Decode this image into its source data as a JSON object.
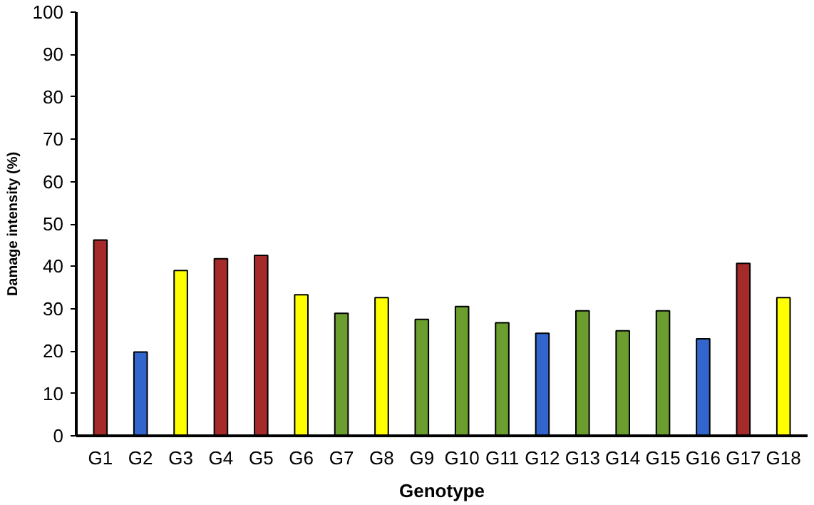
{
  "chart_data": {
    "type": "bar",
    "xlabel": "Genotype",
    "ylabel": "Damage intensity (%)",
    "categories": [
      "G1",
      "G2",
      "G3",
      "G4",
      "G5",
      "G6",
      "G7",
      "G8",
      "G9",
      "G10",
      "G11",
      "G12",
      "G13",
      "G14",
      "G15",
      "G16",
      "G17",
      "G18"
    ],
    "values": [
      46.2,
      19.8,
      39,
      41.8,
      42.6,
      33.3,
      28.9,
      32.6,
      27.5,
      30.5,
      26.7,
      24.2,
      29.5,
      24.8,
      29.5,
      22.9,
      40.7,
      32.6
    ],
    "colors": [
      "#a52a2a",
      "#3366cc",
      "#ffff00",
      "#a52a2a",
      "#a52a2a",
      "#ffff00",
      "#6b9e2f",
      "#ffff00",
      "#6b9e2f",
      "#6b9e2f",
      "#6b9e2f",
      "#3366cc",
      "#6b9e2f",
      "#6b9e2f",
      "#6b9e2f",
      "#3366cc",
      "#a52a2a",
      "#ffff00"
    ],
    "ylim": [
      0,
      100
    ],
    "yticks": [
      0,
      10,
      20,
      30,
      40,
      50,
      60,
      70,
      80,
      90,
      100
    ],
    "grid": false
  }
}
